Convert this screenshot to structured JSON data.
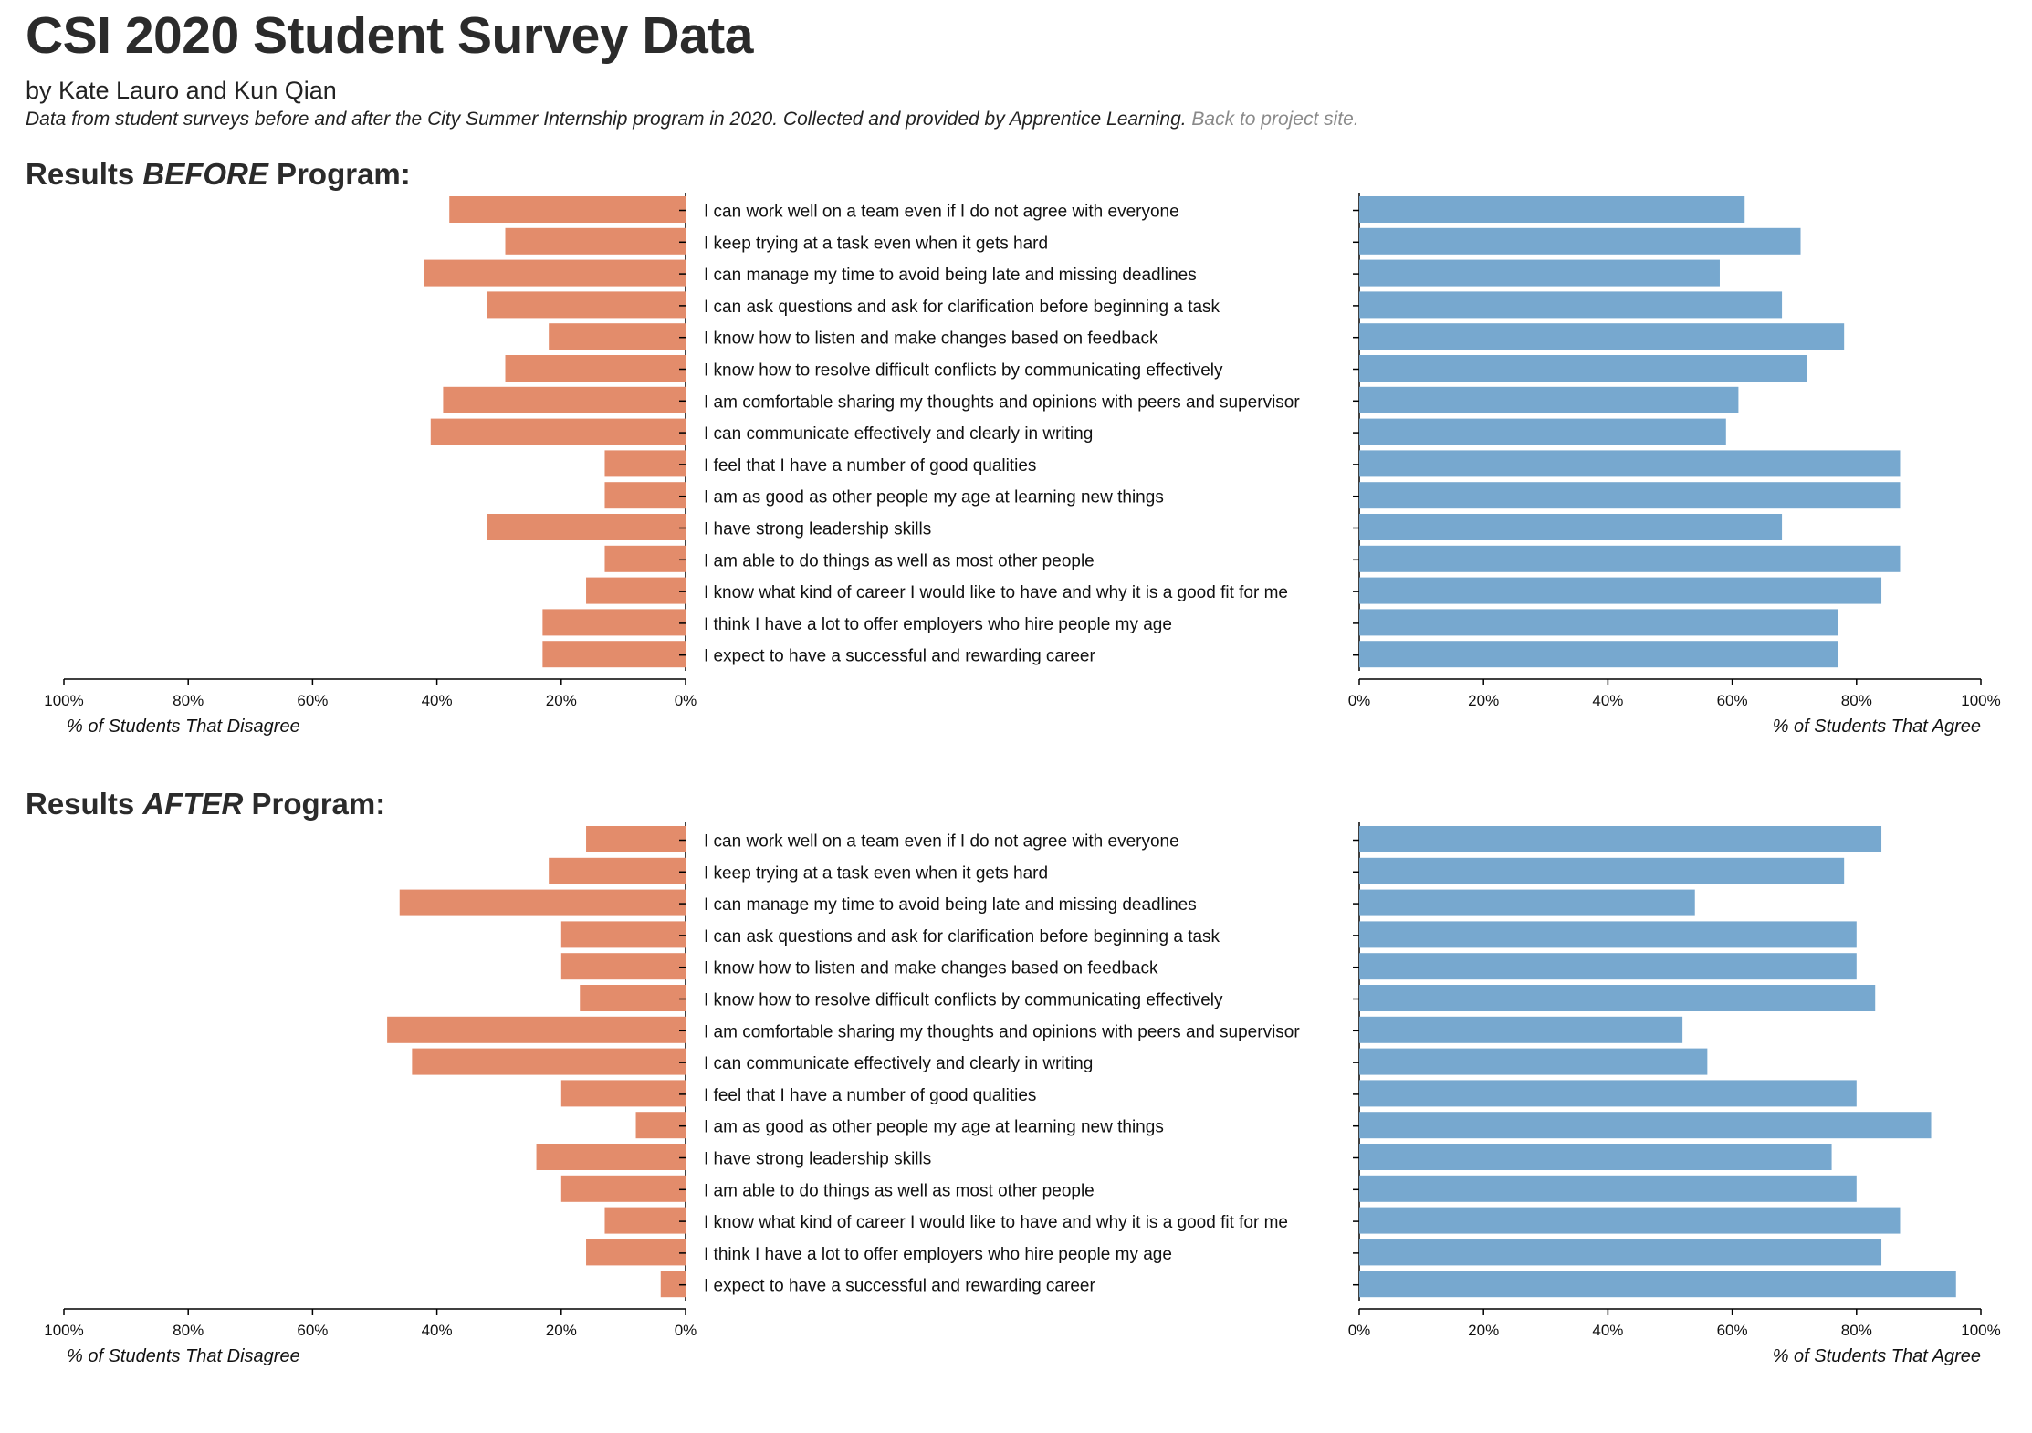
{
  "header": {
    "title": "CSI 2020 Student Survey Data",
    "authors": "by Kate Lauro and Kun Qian",
    "description": "Data from student surveys before and after the City Summer Internship program in 2020. Collected and provided by Apprentice Learning.",
    "back_link": "Back to project site."
  },
  "sections": {
    "before": {
      "prefix": "Results ",
      "emphasis": "BEFORE",
      "suffix": " Program:"
    },
    "after": {
      "prefix": "Results ",
      "emphasis": "AFTER",
      "suffix": " Program:"
    }
  },
  "colors": {
    "disagree": "#e38c6b",
    "agree": "#77a8cf",
    "axis": "#000000"
  },
  "chart_data": [
    {
      "type": "bar",
      "id": "before",
      "categories": [
        "I can work well on a team even if I do not agree with everyone",
        "I keep trying at a task even when it gets hard",
        "I can manage my time to avoid being late and missing deadlines",
        "I can ask questions and ask for clarification before beginning a task",
        "I know how to listen and make changes based on feedback",
        "I know how to resolve difficult conflicts by communicating effectively",
        "I am comfortable sharing my thoughts and opinions with peers and supervisor",
        "I can communicate effectively and clearly in writing",
        "I feel that I have a number of good qualities",
        "I am as good as other people my age at learning new things",
        "I have strong leadership skills",
        "I am able to do things as well as most other people",
        "I know what kind of career I would like to have and why it is a good fit for me",
        "I think I have a lot to offer employers who hire people my age",
        "I expect to have a successful and rewarding career"
      ],
      "series": [
        {
          "name": "% of Students That Disagree",
          "values": [
            38,
            29,
            42,
            32,
            22,
            29,
            39,
            41,
            13,
            13,
            32,
            13,
            16,
            23,
            23
          ]
        },
        {
          "name": "% of Students That Agree",
          "values": [
            62,
            71,
            58,
            68,
            78,
            72,
            61,
            59,
            87,
            87,
            68,
            87,
            84,
            77,
            77
          ]
        }
      ],
      "xlabel_left": "% of Students That Disagree",
      "xlabel_right": "% of Students That Agree",
      "xlim": [
        0,
        100
      ],
      "left_ticks": [
        "100%",
        "80%",
        "60%",
        "40%",
        "20%",
        "0%"
      ],
      "right_ticks": [
        "0%",
        "20%",
        "40%",
        "60%",
        "80%",
        "100%"
      ]
    },
    {
      "type": "bar",
      "id": "after",
      "categories": [
        "I can work well on a team even if I do not agree with everyone",
        "I keep trying at a task even when it gets hard",
        "I can manage my time to avoid being late and missing deadlines",
        "I can ask questions and ask for clarification before beginning a task",
        "I know how to listen and make changes based on feedback",
        "I know how to resolve difficult conflicts by communicating effectively",
        "I am comfortable sharing my thoughts and opinions with peers and supervisor",
        "I can communicate effectively and clearly in writing",
        "I feel that I have a number of good qualities",
        "I am as good as other people my age at learning new things",
        "I have strong leadership skills",
        "I am able to do things as well as most other people",
        "I know what kind of career I would like to have and why it is a good fit for me",
        "I think I have a lot to offer employers who hire people my age",
        "I expect to have a successful and rewarding career"
      ],
      "series": [
        {
          "name": "% of Students That Disagree",
          "values": [
            16,
            22,
            46,
            20,
            20,
            17,
            48,
            44,
            20,
            8,
            24,
            20,
            13,
            16,
            4
          ]
        },
        {
          "name": "% of Students That Agree",
          "values": [
            84,
            78,
            54,
            80,
            80,
            83,
            52,
            56,
            80,
            92,
            76,
            80,
            87,
            84,
            96
          ]
        }
      ],
      "xlabel_left": "% of Students That Disagree",
      "xlabel_right": "% of Students That Agree",
      "xlim": [
        0,
        100
      ],
      "left_ticks": [
        "100%",
        "80%",
        "60%",
        "40%",
        "20%",
        "0%"
      ],
      "right_ticks": [
        "0%",
        "20%",
        "40%",
        "60%",
        "80%",
        "100%"
      ]
    }
  ]
}
